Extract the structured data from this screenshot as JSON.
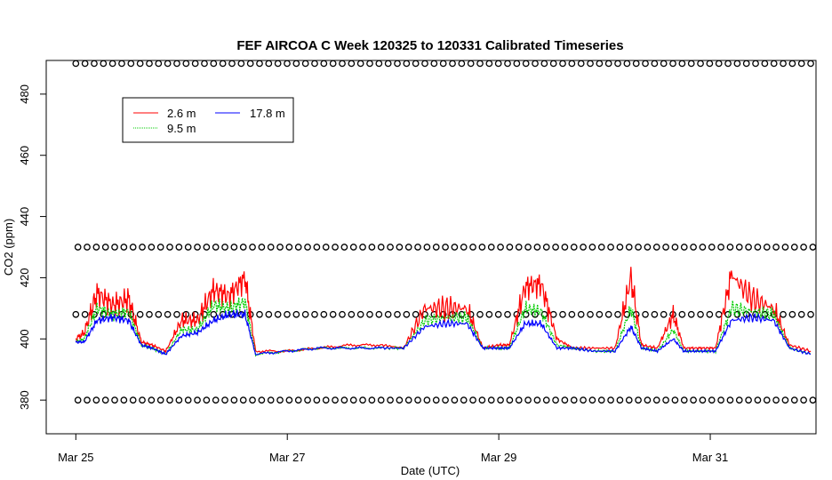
{
  "chart_data": {
    "type": "line",
    "title": "FEF AIRCOA C  Week 120325 to 120331  Calibrated Timeseries",
    "xlabel": "Date (UTC)",
    "ylabel": "CO2 (ppm)",
    "x_ticks": [
      "Mar 25",
      "Mar 27",
      "Mar 29",
      "Mar 31"
    ],
    "y_ticks": [
      380,
      400,
      420,
      440,
      460,
      480
    ],
    "xlim_days": [
      24.72,
      32.0
    ],
    "ylim": [
      369,
      491
    ],
    "grid": false,
    "legend_position": "top-left",
    "legend": [
      {
        "label": "2.6 m",
        "color": "#ff0000"
      },
      {
        "label": "9.5 m",
        "color": "#00cc00"
      },
      {
        "label": "17.8 m",
        "color": "#0000ff"
      }
    ],
    "series": [
      {
        "name": "2.6 m",
        "color": "#ff0000",
        "x": [
          25.0,
          25.08,
          25.2,
          25.35,
          25.5,
          25.62,
          25.72,
          25.85,
          26.0,
          26.15,
          26.3,
          26.45,
          26.6,
          26.7,
          27.0,
          27.3,
          27.6,
          27.9,
          28.1,
          28.3,
          28.5,
          28.7,
          28.85,
          29.0,
          29.1,
          29.25,
          29.4,
          29.55,
          29.7,
          29.9,
          30.1,
          30.25,
          30.35,
          30.5,
          30.65,
          30.75,
          30.9,
          31.05,
          31.2,
          31.4,
          31.6,
          31.75,
          31.95
        ],
        "y": [
          400,
          402,
          415,
          411,
          413,
          399,
          398,
          396,
          406,
          406,
          416,
          414,
          420,
          396,
          396,
          397,
          398,
          398,
          397,
          410,
          410,
          410,
          397,
          398,
          398,
          417,
          418,
          400,
          397,
          397,
          397,
          420,
          398,
          397,
          408,
          397,
          397,
          397,
          421,
          413,
          410,
          398,
          396
        ]
      },
      {
        "name": "9.5 m",
        "color": "#00cc00",
        "x": [
          25.0,
          25.08,
          25.2,
          25.35,
          25.5,
          25.62,
          25.72,
          25.85,
          26.0,
          26.15,
          26.3,
          26.45,
          26.6,
          26.7,
          27.0,
          27.3,
          27.6,
          27.9,
          28.1,
          28.3,
          28.5,
          28.7,
          28.85,
          29.0,
          29.1,
          29.25,
          29.4,
          29.55,
          29.7,
          29.9,
          30.1,
          30.25,
          30.35,
          30.5,
          30.65,
          30.75,
          30.9,
          31.05,
          31.2,
          31.4,
          31.6,
          31.75,
          31.95
        ],
        "y": [
          399,
          400,
          410,
          408,
          409,
          398,
          397,
          395,
          403,
          403,
          411,
          410,
          412,
          395,
          396,
          397,
          397,
          397,
          397,
          406,
          407,
          407,
          397,
          397,
          397,
          410,
          409,
          398,
          397,
          396,
          396,
          410,
          397,
          396,
          403,
          396,
          396,
          396,
          410,
          409,
          408,
          397,
          395
        ]
      },
      {
        "name": "17.8 m",
        "color": "#0000ff",
        "x": [
          25.0,
          25.08,
          25.2,
          25.35,
          25.5,
          25.62,
          25.72,
          25.85,
          26.0,
          26.15,
          26.3,
          26.45,
          26.6,
          26.7,
          27.0,
          27.3,
          27.6,
          27.9,
          28.1,
          28.3,
          28.5,
          28.7,
          28.85,
          29.0,
          29.1,
          29.25,
          29.4,
          29.55,
          29.7,
          29.9,
          30.1,
          30.25,
          30.35,
          30.5,
          30.65,
          30.75,
          30.9,
          31.05,
          31.2,
          31.4,
          31.6,
          31.75,
          31.95
        ],
        "y": [
          399,
          399,
          406,
          407,
          406,
          398,
          397,
          395,
          401,
          402,
          406,
          408,
          408,
          395,
          396,
          397,
          397,
          397,
          397,
          404,
          405,
          405,
          397,
          397,
          397,
          405,
          405,
          397,
          397,
          396,
          396,
          404,
          397,
          396,
          400,
          396,
          396,
          396,
          406,
          407,
          406,
          397,
          395
        ]
      },
      {
        "name": "",
        "markers": "open-circle",
        "color": "#000000",
        "x_start": 25.0,
        "x_end": 31.95,
        "levels": [
          490,
          430,
          408,
          380
        ]
      }
    ]
  }
}
